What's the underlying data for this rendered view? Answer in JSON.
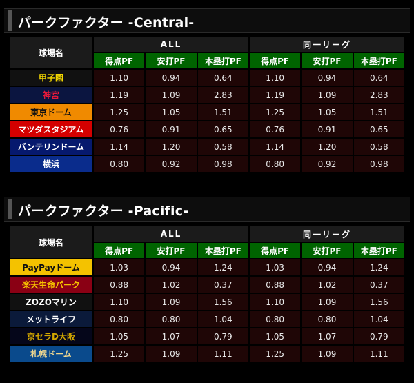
{
  "central": {
    "title": "パークファクター -Central-",
    "col_park": "球場名",
    "group_all": "ALL",
    "group_league": "同一リーグ",
    "metrics": [
      "得点PF",
      "安打PF",
      "本塁打PF"
    ],
    "rows": [
      {
        "name": "甲子園",
        "bg": "#111111",
        "fg": "#f5d800",
        "vals": [
          "1.10",
          "0.94",
          "0.64",
          "1.10",
          "0.94",
          "0.64"
        ]
      },
      {
        "name": "神宮",
        "bg": "#0b1540",
        "fg": "#e6193a",
        "vals": [
          "1.19",
          "1.09",
          "2.83",
          "1.19",
          "1.09",
          "2.83"
        ]
      },
      {
        "name": "東京ドーム",
        "bg": "#f08a00",
        "fg": "#111111",
        "vals": [
          "1.25",
          "1.05",
          "1.51",
          "1.25",
          "1.05",
          "1.51"
        ]
      },
      {
        "name": "マツダスタジアム",
        "bg": "#d40000",
        "fg": "#ffffff",
        "vals": [
          "0.76",
          "0.91",
          "0.65",
          "0.76",
          "0.91",
          "0.65"
        ]
      },
      {
        "name": "バンテリンドーム",
        "bg": "#06196e",
        "fg": "#ffffff",
        "vals": [
          "1.14",
          "1.20",
          "0.58",
          "1.14",
          "1.20",
          "0.58"
        ]
      },
      {
        "name": "横浜",
        "bg": "#0a2c8c",
        "fg": "#ffffff",
        "vals": [
          "0.80",
          "0.92",
          "0.98",
          "0.80",
          "0.92",
          "0.98"
        ]
      }
    ]
  },
  "pacific": {
    "title": "パークファクター -Pacific-",
    "col_park": "球場名",
    "group_all": "ALL",
    "group_league": "同一リーグ",
    "metrics": [
      "得点PF",
      "安打PF",
      "本塁打PF"
    ],
    "rows": [
      {
        "name": "PayPayドーム",
        "bg": "#f4c200",
        "fg": "#111111",
        "vals": [
          "1.03",
          "0.94",
          "1.24",
          "1.03",
          "0.94",
          "1.24"
        ]
      },
      {
        "name": "楽天生命パーク",
        "bg": "#8a0014",
        "fg": "#f5c000",
        "vals": [
          "0.88",
          "1.02",
          "0.37",
          "0.88",
          "1.02",
          "0.37"
        ]
      },
      {
        "name": "ZOZOマリン",
        "bg": "#111111",
        "fg": "#ffffff",
        "vals": [
          "1.10",
          "1.09",
          "1.56",
          "1.10",
          "1.09",
          "1.56"
        ]
      },
      {
        "name": "メットライフ",
        "bg": "#0b1a3a",
        "fg": "#ffffff",
        "vals": [
          "0.80",
          "0.80",
          "1.04",
          "0.80",
          "0.80",
          "1.04"
        ]
      },
      {
        "name": "京セラD大阪",
        "bg": "#05061a",
        "fg": "#d4a800",
        "vals": [
          "1.05",
          "1.07",
          "0.79",
          "1.05",
          "1.07",
          "0.79"
        ]
      },
      {
        "name": "札幌ドーム",
        "bg": "#0a4a8c",
        "fg": "#f0d890",
        "vals": [
          "1.25",
          "1.09",
          "1.11",
          "1.25",
          "1.09",
          "1.11"
        ]
      }
    ]
  }
}
